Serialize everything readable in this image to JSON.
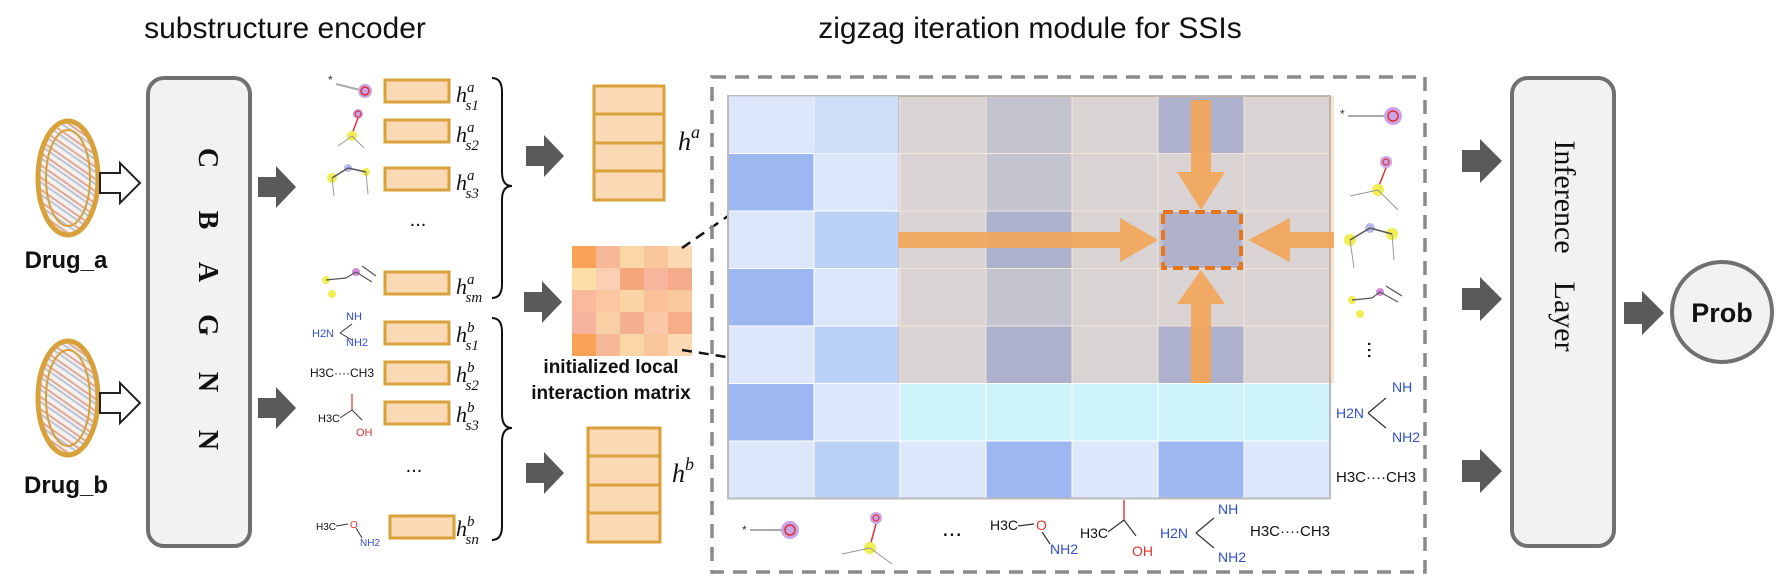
{
  "titles": {
    "encoder": "substructure encoder",
    "zigzag": "zigzag iteration module for SSIs"
  },
  "drugs": {
    "a": "Drug_a",
    "b": "Drug_b"
  },
  "cbagnn": [
    "C",
    "B",
    "A",
    "G",
    "N",
    "N"
  ],
  "features_a": {
    "items": [
      {
        "base": "h",
        "sup": "a",
        "sub": "s1"
      },
      {
        "base": "h",
        "sup": "a",
        "sub": "s2"
      },
      {
        "base": "h",
        "sup": "a",
        "sub": "s3"
      },
      {
        "base": "h",
        "sup": "a",
        "sub": "sm"
      }
    ],
    "ellipsis": "..."
  },
  "features_b": {
    "items": [
      {
        "base": "h",
        "sup": "b",
        "sub": "s1"
      },
      {
        "base": "h",
        "sup": "b",
        "sub": "s2"
      },
      {
        "base": "h",
        "sup": "b",
        "sub": "s3"
      },
      {
        "base": "h",
        "sup": "b",
        "sub": "sn"
      }
    ],
    "ellipsis": "..."
  },
  "pooled": {
    "a": {
      "base": "h",
      "sup": "a"
    },
    "b": {
      "base": "h",
      "sup": "b"
    }
  },
  "local_matrix": {
    "label_line1": "initialized local",
    "label_line2": "interaction matrix"
  },
  "substructure_labels": {
    "guanidine_nh": "NH",
    "guanidine_h2n": "H2N",
    "guanidine_nh2": "NH2",
    "ethane": "H3C····CH3",
    "acetic_h3c": "H3C",
    "acetic_oh": "OH",
    "methoxyamine_h3c": "H3C",
    "methoxyamine_o": "O",
    "methoxyamine_nh2": "NH2",
    "ellipsis": "...",
    "star": "*"
  },
  "inference": {
    "word1": "Inference",
    "word2": "Layer"
  },
  "output": "Prob",
  "colors": {
    "orange_box": "#d9a13a",
    "orange_fill": "#fbd9b5",
    "arrow_orange": "#f2a65a",
    "grid_blue_dark": "#9db7f0",
    "grid_blue_light": "#dce7fb",
    "grid_cyan": "#cdf2f9",
    "panel_gray": "#f2f2f2",
    "panel_border": "#707070",
    "gray_arrow": "#5a5a5a"
  }
}
